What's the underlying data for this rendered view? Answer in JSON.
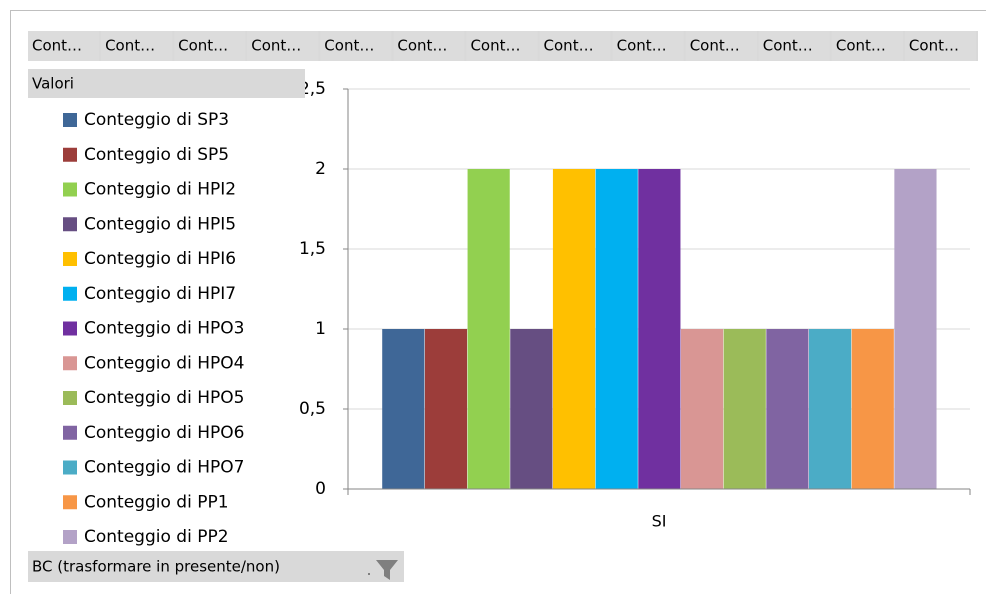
{
  "chart_data": {
    "type": "bar",
    "field_buttons": [
      "Cont…",
      "Cont…",
      "Cont…",
      "Cont…",
      "Cont…",
      "Cont…",
      "Cont…",
      "Cont…",
      "Cont…",
      "Cont…",
      "Cont…",
      "Cont…",
      "Cont…"
    ],
    "values_button": "Valori",
    "filter_button": "BC (trasformare in presente/non)",
    "categories": [
      "SI"
    ],
    "series": [
      {
        "name": "Conteggio di SP3",
        "color": "#3f6797",
        "values": [
          1
        ]
      },
      {
        "name": "Conteggio di SP5",
        "color": "#9c3d3a",
        "values": [
          1
        ]
      },
      {
        "name": "Conteggio di HPI2",
        "color": "#92d050",
        "values": [
          2
        ]
      },
      {
        "name": "Conteggio di HPI5",
        "color": "#664e82",
        "values": [
          1
        ]
      },
      {
        "name": "Conteggio di HPI6",
        "color": "#ffc000",
        "values": [
          2
        ]
      },
      {
        "name": "Conteggio di HPI7",
        "color": "#00b0f0",
        "values": [
          2
        ]
      },
      {
        "name": "Conteggio di HPO3",
        "color": "#7030a0",
        "values": [
          2
        ]
      },
      {
        "name": "Conteggio di HPO4",
        "color": "#d99694",
        "values": [
          1
        ]
      },
      {
        "name": "Conteggio di HPO5",
        "color": "#9bbb59",
        "values": [
          1
        ]
      },
      {
        "name": "Conteggio di HPO6",
        "color": "#8064a2",
        "values": [
          1
        ]
      },
      {
        "name": "Conteggio di HPO7",
        "color": "#4bacc6",
        "values": [
          1
        ]
      },
      {
        "name": "Conteggio di PP1",
        "color": "#f79646",
        "values": [
          1
        ]
      },
      {
        "name": "Conteggio di PP2",
        "color": "#b3a2c7",
        "values": [
          2
        ]
      }
    ],
    "ylim": [
      0,
      2.5
    ],
    "yticks": [
      0,
      {
        "value": 0.5,
        "label": "0,5"
      },
      1,
      {
        "value": 1.5,
        "label": "1,5"
      },
      2,
      {
        "value": 2.5,
        "label": "2,5"
      }
    ],
    "grid": true
  }
}
